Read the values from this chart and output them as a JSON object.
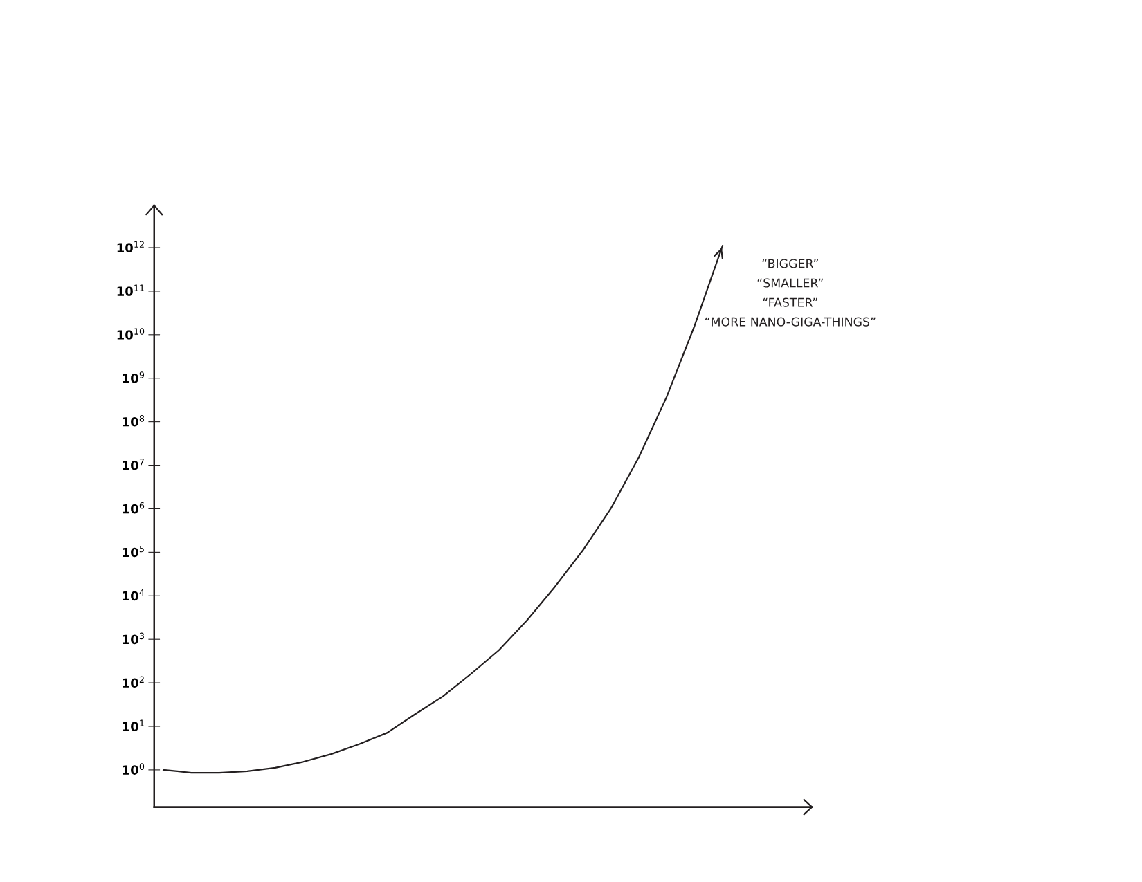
{
  "chart_data": {
    "type": "line",
    "categories": [
      null,
      null,
      null,
      null,
      null,
      null,
      null,
      null,
      null,
      null,
      null,
      null,
      null,
      null,
      null,
      null,
      null,
      null,
      null,
      null,
      null
    ],
    "series": [
      {
        "color": "#231f20",
        "values": [
          1,
          0.86,
          0.86,
          0.93,
          1.12,
          1.53,
          2.3,
          3.9,
          7.1,
          19,
          49,
          160,
          560,
          2700,
          16000,
          110000,
          1000000,
          15000000,
          370000000,
          16000000000,
          1100000000000
        ]
      }
    ],
    "log": true,
    "ylim": [
      0.14,
      9300000000000
    ],
    "yticks": [
      {
        "value": 1,
        "label": "10$^{0}$"
      },
      {
        "value": 10,
        "label": "10$^{1}$"
      },
      {
        "value": 100,
        "label": "10$^{2}$"
      },
      {
        "value": 1000,
        "label": "10$^{3}$"
      },
      {
        "value": 10000,
        "label": "10$^{4}$"
      },
      {
        "value": 100000,
        "label": "10$^{5}$"
      },
      {
        "value": 1000000,
        "label": "10$^{6}$"
      },
      {
        "value": 10000000,
        "label": "10$^{7}$"
      },
      {
        "value": 100000000,
        "label": "10$^{8}$"
      },
      {
        "value": 1000000000,
        "label": "10$^{9}$"
      },
      {
        "value": 10000000000,
        "label": "10$^{10}$"
      },
      {
        "value": 100000000000,
        "label": "10$^{11}$"
      },
      {
        "value": 1000000000000,
        "label": "10$^{12}$"
      }
    ],
    "grid": false,
    "tick_labels": "y",
    "annotations": [
      "“BIGGER”",
      "“SMALLER”",
      "“FASTER”",
      "“MORE NANO-GIGA-THINGS”"
    ]
  }
}
